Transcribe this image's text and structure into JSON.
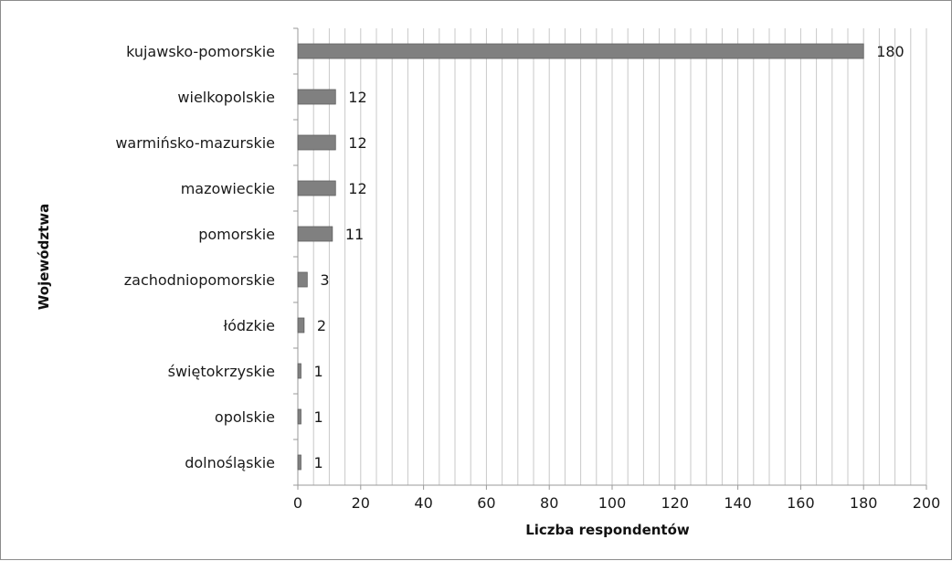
{
  "chart_data": {
    "type": "bar",
    "orientation": "horizontal",
    "categories": [
      "kujawsko-pomorskie",
      "wielkopolskie",
      "warmińsko-mazurskie",
      "mazowieckie",
      "pomorskie",
      "zachodniopomorskie",
      "łódzkie",
      "świętokrzyskie",
      "opolskie",
      "dolnośląskie"
    ],
    "values": [
      180,
      12,
      12,
      12,
      11,
      3,
      2,
      1,
      1,
      1
    ],
    "data_labels": [
      "180",
      "12",
      "12",
      "12",
      "11",
      "3",
      "2",
      "1",
      "1",
      "1"
    ],
    "xlabel": "Liczba respondentów",
    "ylabel": "Województwa",
    "xlim": [
      0,
      200
    ],
    "x_ticks": [
      0,
      20,
      40,
      60,
      80,
      100,
      120,
      140,
      160,
      180,
      200
    ],
    "grid": "vertical",
    "legend": "none",
    "colors": {
      "bar": "#808080",
      "bar_edge": "#5f5f5f",
      "grid": "#c8c8c8",
      "axis": "#9a9a9a"
    }
  }
}
